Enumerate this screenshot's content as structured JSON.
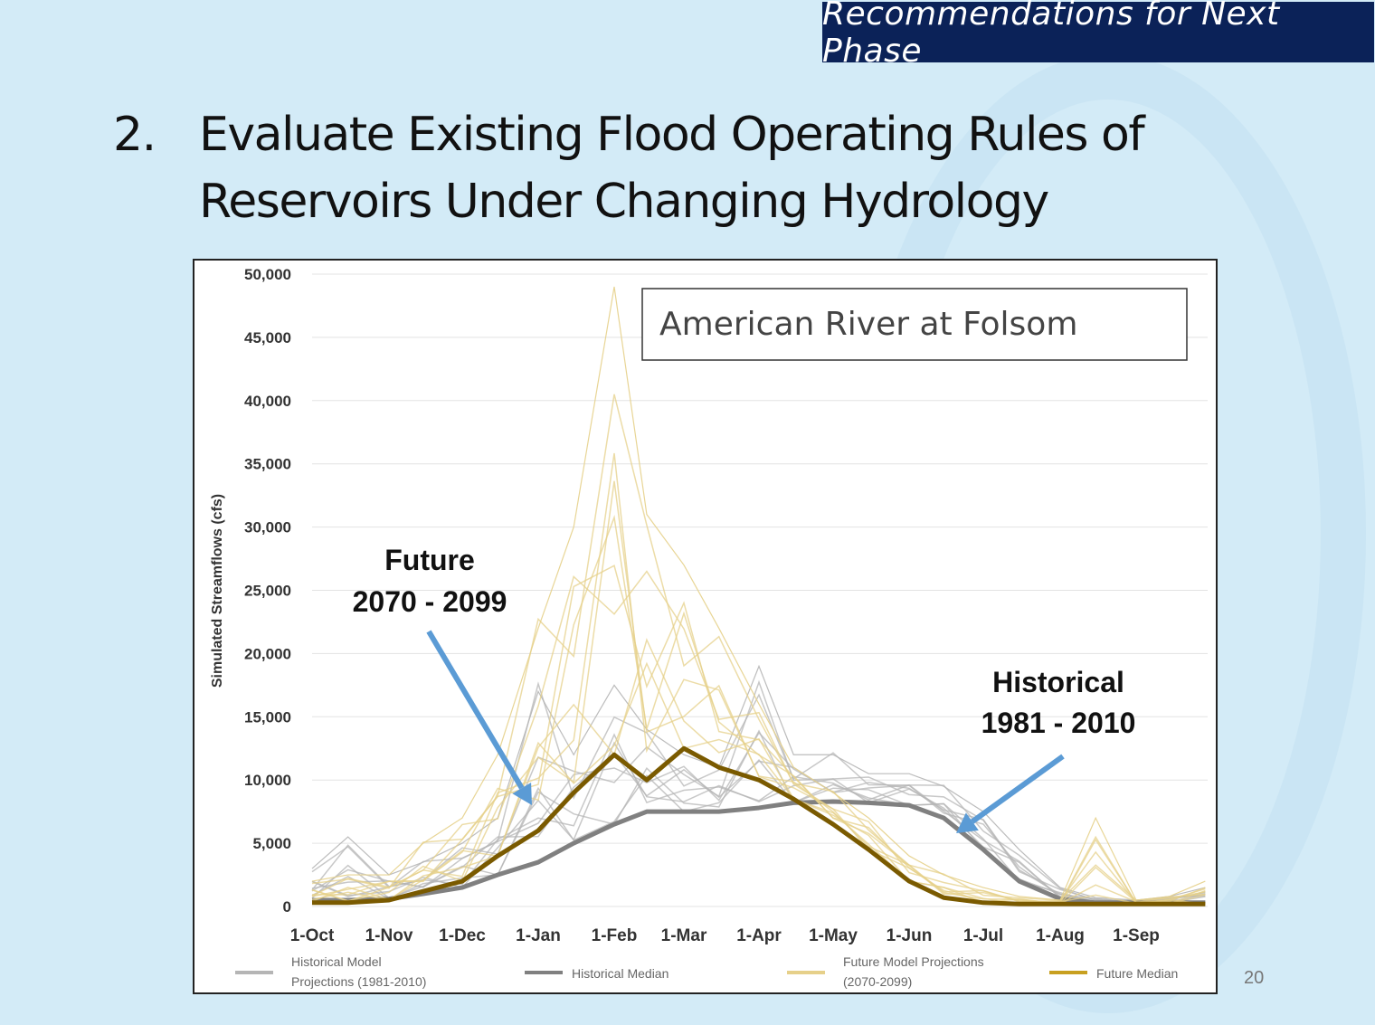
{
  "banner": "Recommendations for Next Phase",
  "slide_title": {
    "number": "2.",
    "text": "Evaluate Existing Flood Operating Rules of Reservoirs Under Changing Hydrology"
  },
  "page_number": "20",
  "chart_data": {
    "type": "line",
    "title": "American River at Folsom",
    "ylabel": "Simulated Streamflows (cfs)",
    "xlabel": "",
    "ylim": [
      0,
      50000
    ],
    "yticks": [
      "0",
      "5,000",
      "10,000",
      "15,000",
      "20,000",
      "25,000",
      "30,000",
      "35,000",
      "40,000",
      "45,000",
      "50,000"
    ],
    "xticks": [
      "1-Oct",
      "1-Nov",
      "1-Dec",
      "1-Jan",
      "1-Feb",
      "1-Mar",
      "1-Apr",
      "1-May",
      "1-Jun",
      "1-Jul",
      "1-Aug",
      "1-Sep"
    ],
    "grid": true,
    "legend_placement": "bottom",
    "x": [
      "1-Oct",
      "15-Oct",
      "1-Nov",
      "15-Nov",
      "1-Dec",
      "15-Dec",
      "1-Jan",
      "15-Jan",
      "1-Feb",
      "15-Feb",
      "1-Mar",
      "15-Mar",
      "1-Apr",
      "15-Apr",
      "1-May",
      "15-May",
      "1-Jun",
      "15-Jun",
      "1-Jul",
      "15-Jul",
      "1-Aug",
      "15-Aug",
      "1-Sep",
      "15-Sep",
      "30-Sep"
    ],
    "series": [
      {
        "name": "Historical Model Projections (1981-2010)",
        "color": "#b5b5b5",
        "style": "ensemble-max",
        "values": [
          3000,
          5500,
          2500,
          3500,
          5000,
          7000,
          17000,
          12000,
          17500,
          14000,
          12000,
          11000,
          19000,
          12000,
          12000,
          10500,
          10500,
          9500,
          7500,
          4500,
          1500,
          700,
          500,
          800,
          1500
        ]
      },
      {
        "name": "Historical Median",
        "color": "#808080",
        "values": [
          500,
          500,
          600,
          1000,
          1500,
          2500,
          3500,
          5000,
          6500,
          7500,
          7500,
          7500,
          7800,
          8200,
          8300,
          8200,
          8000,
          7000,
          4500,
          2000,
          600,
          300,
          300,
          300,
          300
        ]
      },
      {
        "name": "Future Model Projections (2070-2099)",
        "color": "#e6d08a",
        "style": "ensemble-max",
        "values": [
          2000,
          2500,
          2500,
          5000,
          7000,
          12000,
          22000,
          30000,
          49000,
          31000,
          27000,
          22000,
          16000,
          11000,
          9000,
          7000,
          4000,
          2500,
          1500,
          800,
          500,
          7000,
          500,
          800,
          2000
        ]
      },
      {
        "name": "Future Median",
        "color": "#7a5a00",
        "values": [
          300,
          300,
          500,
          1200,
          2000,
          4000,
          6000,
          9000,
          12000,
          10000,
          12500,
          11000,
          10000,
          8500,
          6500,
          4500,
          2000,
          700,
          300,
          200,
          200,
          200,
          200,
          200,
          200
        ]
      }
    ],
    "annotations": [
      {
        "text": [
          "Future",
          "2070 - 2099"
        ],
        "points_to": "Future Median",
        "color": "#5b9bd5"
      },
      {
        "text": [
          "Historical",
          "1981 - 2010"
        ],
        "points_to": "Historical Median",
        "color": "#5b9bd5"
      }
    ]
  }
}
